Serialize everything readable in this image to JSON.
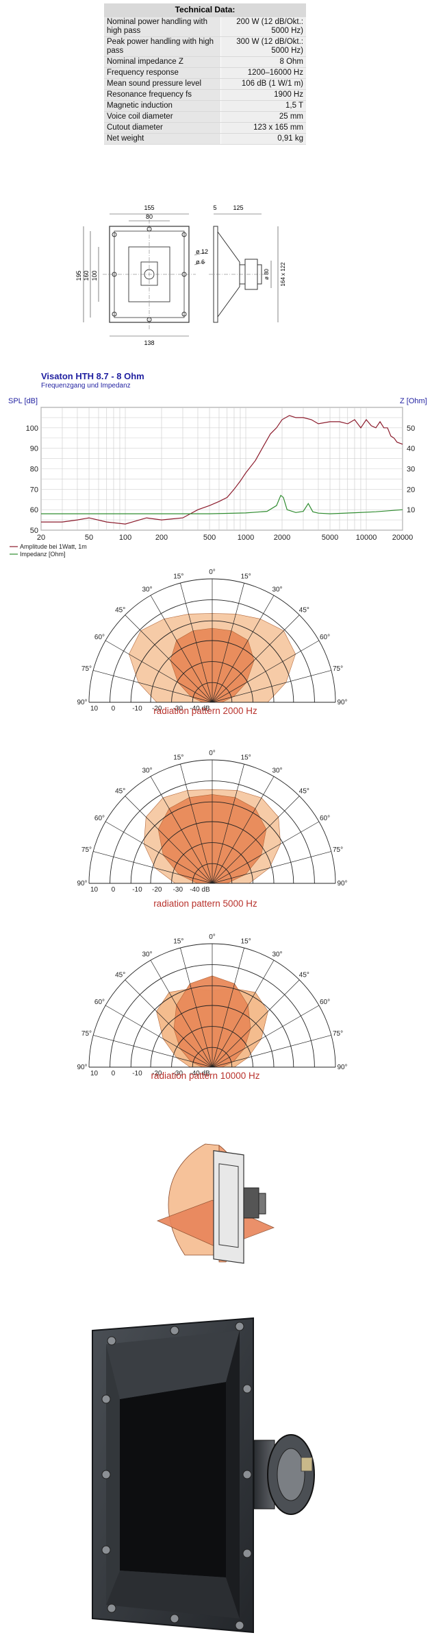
{
  "specs": {
    "title": "Technical Data:",
    "rows": [
      {
        "label": "Nominal power handling with high pass",
        "value": "200 W (12 dB/Okt.: 5000 Hz)"
      },
      {
        "label": "Peak power handling with high pass",
        "value": "300 W (12 dB/Okt.: 5000 Hz)"
      },
      {
        "label": "Nominal impedance Z",
        "value": "8 Ohm"
      },
      {
        "label": "Frequency response",
        "value": "1200–16000 Hz"
      },
      {
        "label": "Mean sound pressure level",
        "value": "106 dB (1 W/1 m)"
      },
      {
        "label": "Resonance frequency fs",
        "value": "1900 Hz"
      },
      {
        "label": "Magnetic induction",
        "value": "1,5 T"
      },
      {
        "label": "Voice coil diameter",
        "value": "25 mm"
      },
      {
        "label": "Cutout diameter",
        "value": "123 x 165 mm"
      },
      {
        "label": "Net weight",
        "value": "0,91 kg"
      }
    ]
  },
  "drawing": {
    "dims": [
      "155",
      "80",
      "5",
      "125",
      "195",
      "160",
      "100",
      "138",
      "ø 12",
      "ø 6",
      "ø 80",
      "164 x 122"
    ]
  },
  "chart_data": {
    "type": "line",
    "title": "Visaton HTH 8.7 - 8 Ohm",
    "subtitle": "Frequenzgang und Impedanz",
    "xlabel": "",
    "ylabel": "SPL [dB]",
    "y2label": "Z [Ohm]",
    "xscale": "log",
    "xlim": [
      20,
      20000
    ],
    "ylim": [
      50,
      110
    ],
    "y2lim": [
      0,
      60
    ],
    "x_ticks": [
      20,
      50,
      100,
      200,
      500,
      1000,
      2000,
      5000,
      10000,
      20000
    ],
    "x_tick_labels": [
      "20",
      "50",
      "100",
      "200",
      "500",
      "1000",
      "2000",
      "5000",
      "10000",
      "20000"
    ],
    "y_ticks": [
      50,
      60,
      70,
      80,
      90,
      100
    ],
    "y2_ticks": [
      10,
      20,
      30,
      40,
      50
    ],
    "grid": true,
    "legend_position": "bottom-left",
    "series": [
      {
        "name": "Amplitude bei 1Watt, 1m",
        "color": "#8b1a2b",
        "x": [
          20,
          30,
          40,
          50,
          70,
          100,
          150,
          200,
          300,
          400,
          500,
          600,
          700,
          800,
          900,
          1000,
          1200,
          1400,
          1600,
          1800,
          2000,
          2300,
          2600,
          3000,
          3500,
          4000,
          5000,
          6000,
          7000,
          8000,
          9000,
          10000,
          11000,
          12000,
          13000,
          14000,
          15000,
          16000,
          17000,
          18000,
          20000
        ],
        "y": [
          54,
          54,
          55,
          56,
          54,
          53,
          56,
          55,
          56,
          60,
          62,
          64,
          66,
          70,
          74,
          78,
          84,
          91,
          97,
          100,
          104,
          106,
          105,
          105,
          104,
          102,
          103,
          103,
          102,
          104,
          100,
          104,
          101,
          100,
          103,
          100,
          100,
          96,
          95,
          93,
          92
        ]
      },
      {
        "name": "Impedanz [Ohm]",
        "color": "#2e8b2e",
        "axis": "right",
        "x": [
          20,
          50,
          100,
          200,
          500,
          1000,
          1500,
          1800,
          1950,
          2050,
          2200,
          2600,
          3000,
          3300,
          3600,
          4000,
          5000,
          8000,
          12000,
          20000
        ],
        "y": [
          8,
          8,
          8,
          8,
          8,
          8.4,
          9.2,
          12,
          17,
          16,
          10,
          8.6,
          9.2,
          13,
          9,
          8.3,
          8,
          8.5,
          9,
          10
        ]
      }
    ]
  },
  "polar": {
    "angle_labels": [
      "0°",
      "15°",
      "30°",
      "45°",
      "60°",
      "75°",
      "90°",
      "15°",
      "30°",
      "45°",
      "60°",
      "75°",
      "90°"
    ],
    "db_labels": [
      "10",
      "0",
      "-10",
      "-20",
      "-30",
      "-40 dB"
    ],
    "charts": [
      {
        "caption": "radiation pattern 2000 Hz"
      },
      {
        "caption": "radiation pattern 5000 Hz"
      },
      {
        "caption": "radiation pattern 10000 Hz"
      }
    ]
  }
}
